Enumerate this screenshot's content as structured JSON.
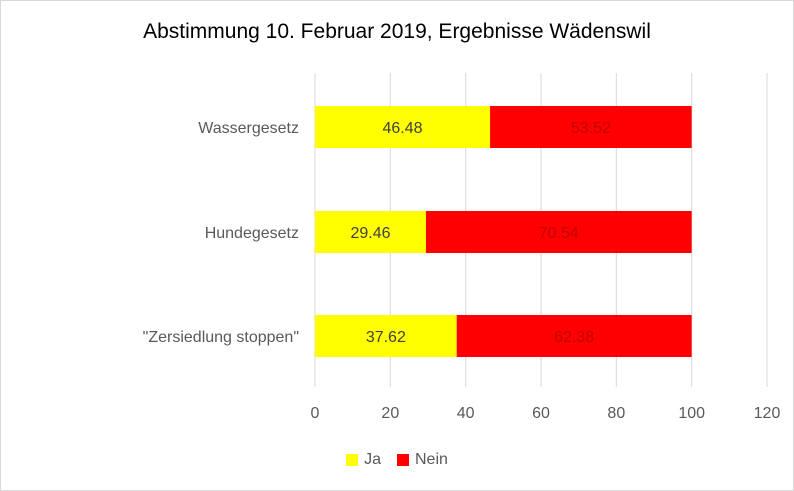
{
  "chart_data": {
    "type": "bar",
    "orientation": "horizontal",
    "stacked": true,
    "title": "Abstimmung 10. Februar 2019, Ergebnisse Wädenswil",
    "categories": [
      "Wassergesetz",
      "Hundegesetz",
      "\"Zersiedlung stoppen\""
    ],
    "series": [
      {
        "name": "Ja",
        "color": "#ffff00",
        "values": [
          46.48,
          29.46,
          37.62
        ],
        "labels": [
          "46.48",
          "29.46",
          "37.62"
        ]
      },
      {
        "name": "Nein",
        "color": "#ff0000",
        "values": [
          53.52,
          70.54,
          62.38
        ],
        "labels": [
          "53.52",
          "70.54",
          "62.38"
        ]
      }
    ],
    "xlim": [
      0,
      120
    ],
    "xticks": [
      0,
      20,
      40,
      60,
      80,
      100,
      120
    ],
    "xtick_labels": [
      "0",
      "20",
      "40",
      "60",
      "80",
      "100",
      "120"
    ],
    "grid": "vertical",
    "legend_position": "bottom"
  }
}
